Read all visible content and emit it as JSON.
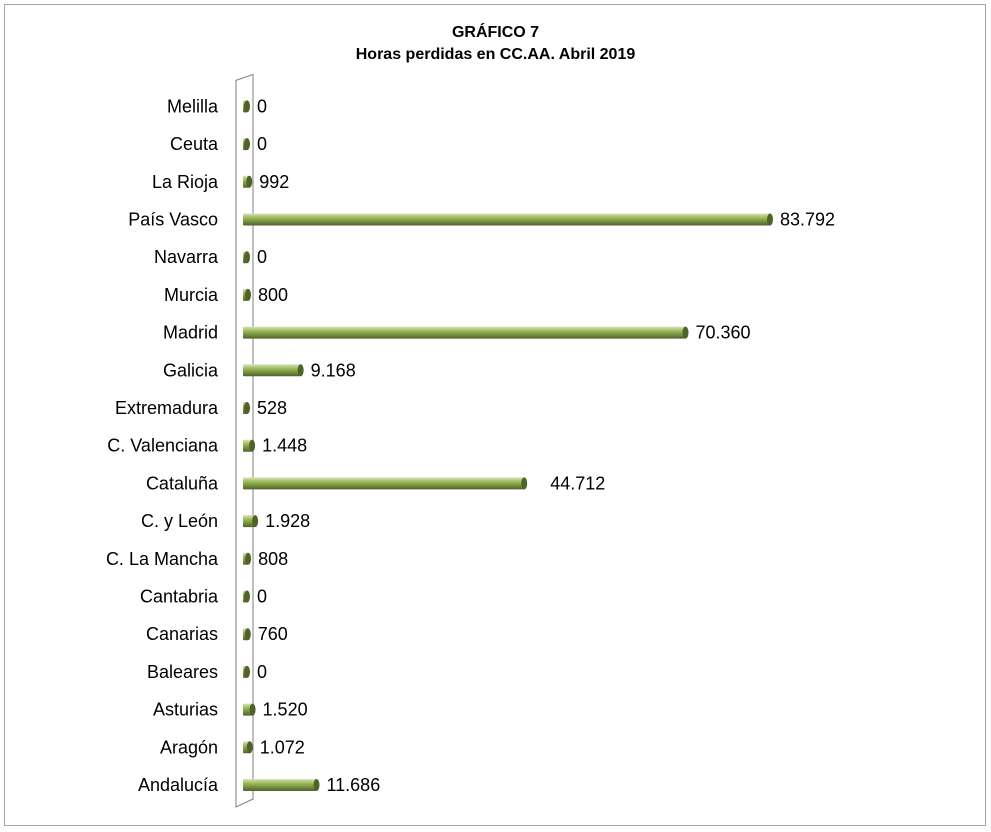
{
  "chart_data": {
    "type": "bar",
    "orientation": "horizontal",
    "title": "GRÁFICO 7",
    "subtitle": "Horas perdidas en CC.AA. Abril 2019",
    "categories": [
      "Andalucía",
      "Aragón",
      "Asturias",
      "Baleares",
      "Canarias",
      "Cantabria",
      "C. La Mancha",
      "C. y León",
      "Cataluña",
      "C. Valenciana",
      "Extremadura",
      "Galicia",
      "Madrid",
      "Murcia",
      "Navarra",
      "País Vasco",
      "La Rioja",
      "Ceuta",
      "Melilla"
    ],
    "values": [
      11686,
      1072,
      1520,
      0,
      760,
      0,
      808,
      1928,
      44712,
      1448,
      528,
      9168,
      70360,
      800,
      0,
      83792,
      992,
      0,
      0
    ],
    "value_labels": [
      "11.686",
      "1.072",
      "1.520",
      "0",
      "760",
      "0",
      "808",
      "1.928",
      "44.712",
      "1.448",
      "528",
      "9.168",
      "70.360",
      "800",
      "0",
      "83.792",
      "992",
      "0",
      "0"
    ],
    "bar_color": "#9bbb59",
    "bar_dark_color": "#4f6228",
    "grid": false,
    "legend": "none"
  }
}
